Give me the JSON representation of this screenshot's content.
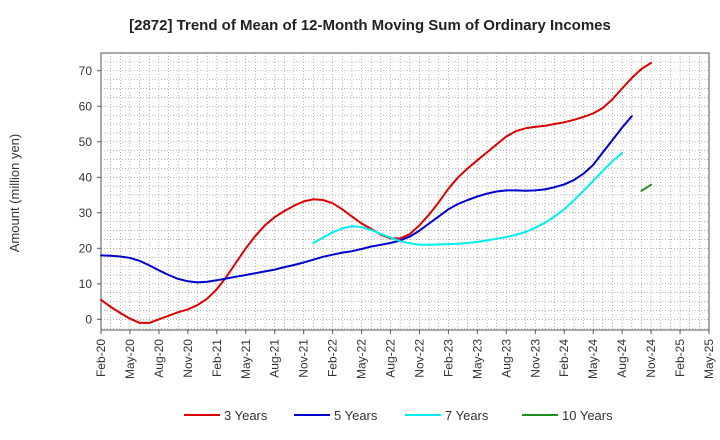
{
  "chart_data": {
    "type": "line",
    "title": "[2872]  Trend of Mean of 12-Month Moving Sum of Ordinary Incomes",
    "xlabel": "",
    "ylabel": "Amount (million yen)",
    "ylim": [
      -3,
      75
    ],
    "yticks": [
      0,
      10,
      20,
      30,
      40,
      50,
      60,
      70
    ],
    "x_range": [
      0,
      63
    ],
    "categories": [
      "Feb-20",
      "May-20",
      "Aug-20",
      "Nov-20",
      "Feb-21",
      "May-21",
      "Aug-21",
      "Nov-21",
      "Feb-22",
      "May-22",
      "Aug-22",
      "Nov-22",
      "Feb-23",
      "May-23",
      "Aug-23",
      "Nov-23",
      "Feb-24",
      "May-24",
      "Aug-24",
      "Nov-24",
      "Feb-25",
      "May-25"
    ],
    "grid": true,
    "legend_position": "bottom",
    "series": [
      {
        "name": "3 Years",
        "color": "#dd0000",
        "x": [
          0,
          1,
          2,
          3,
          4,
          5,
          6,
          7,
          8,
          9,
          10,
          11,
          12,
          13,
          14,
          15,
          16,
          17,
          18,
          19,
          20,
          21,
          22,
          23,
          24,
          25,
          26,
          27,
          28,
          29,
          30,
          31,
          32,
          33,
          34,
          35,
          36,
          37,
          38,
          39,
          40,
          41,
          42,
          43,
          44,
          45,
          46,
          47,
          48,
          49,
          50,
          51,
          52,
          53,
          54,
          55,
          56,
          57,
          58,
          59,
          60
        ],
        "values": [
          5.5,
          3.5,
          1.8,
          0.2,
          -1.0,
          -1.0,
          0.0,
          1.0,
          2.0,
          2.8,
          4.0,
          5.8,
          8.5,
          12.0,
          16.0,
          20.0,
          23.5,
          26.5,
          28.8,
          30.5,
          32.0,
          33.2,
          33.8,
          33.6,
          32.7,
          31.0,
          29.0,
          27.0,
          25.5,
          23.8,
          22.8,
          22.8,
          24.0,
          26.5,
          29.5,
          33.0,
          36.8,
          40.0,
          42.5,
          44.8,
          47.0,
          49.3,
          51.5,
          53.0,
          53.8,
          54.2,
          54.5,
          55.0,
          55.5,
          56.2,
          57.0,
          58.0,
          59.5,
          62.0,
          65.0,
          68.0,
          70.5,
          72.2,
          null,
          null,
          null
        ]
      },
      {
        "name": "5 Years",
        "color": "#0000cc",
        "x": [
          0,
          1,
          2,
          3,
          4,
          5,
          6,
          7,
          8,
          9,
          10,
          11,
          12,
          13,
          14,
          15,
          16,
          17,
          18,
          19,
          20,
          21,
          22,
          23,
          24,
          25,
          26,
          27,
          28,
          29,
          30,
          31,
          32,
          33,
          34,
          35,
          36,
          37,
          38,
          39,
          40,
          41,
          42,
          43,
          44,
          45,
          46,
          47,
          48,
          49,
          50,
          51,
          52,
          53,
          54,
          55,
          56,
          57,
          58,
          59,
          60
        ],
        "values": [
          18.0,
          17.9,
          17.7,
          17.3,
          16.5,
          15.2,
          13.8,
          12.5,
          11.4,
          10.7,
          10.4,
          10.6,
          11.0,
          11.5,
          12.0,
          12.5,
          13.0,
          13.5,
          14.0,
          14.7,
          15.3,
          16.0,
          16.8,
          17.6,
          18.2,
          18.8,
          19.2,
          19.8,
          20.5,
          21.0,
          21.5,
          22.2,
          23.3,
          25.0,
          27.0,
          29.0,
          31.0,
          32.5,
          33.6,
          34.6,
          35.4,
          36.0,
          36.3,
          36.3,
          36.2,
          36.3,
          36.6,
          37.2,
          38.0,
          39.2,
          41.0,
          43.5,
          47.0,
          50.5,
          54.0,
          57.2,
          null,
          null,
          null,
          null,
          null
        ]
      },
      {
        "name": "7 Years",
        "color": "#00eeee",
        "x": [
          22,
          23,
          24,
          25,
          26,
          27,
          28,
          29,
          30,
          31,
          32,
          33,
          34,
          35,
          36,
          37,
          38,
          39,
          40,
          41,
          42,
          43,
          44,
          45,
          46,
          47,
          48,
          49,
          50,
          51,
          52,
          53,
          54,
          55,
          56,
          57
        ],
        "values": [
          21.5,
          23.0,
          24.5,
          25.6,
          26.2,
          26.0,
          25.2,
          24.0,
          23.0,
          22.0,
          21.4,
          21.0,
          21.0,
          21.1,
          21.2,
          21.3,
          21.5,
          21.8,
          22.2,
          22.7,
          23.2,
          23.8,
          24.6,
          25.8,
          27.2,
          29.0,
          31.0,
          33.5,
          36.2,
          39.0,
          41.8,
          44.5,
          46.8,
          null,
          null,
          null
        ]
      },
      {
        "name": "10 Years",
        "color": "#228b22",
        "x": [
          56,
          57
        ],
        "values": [
          36.2,
          37.9
        ]
      }
    ]
  }
}
